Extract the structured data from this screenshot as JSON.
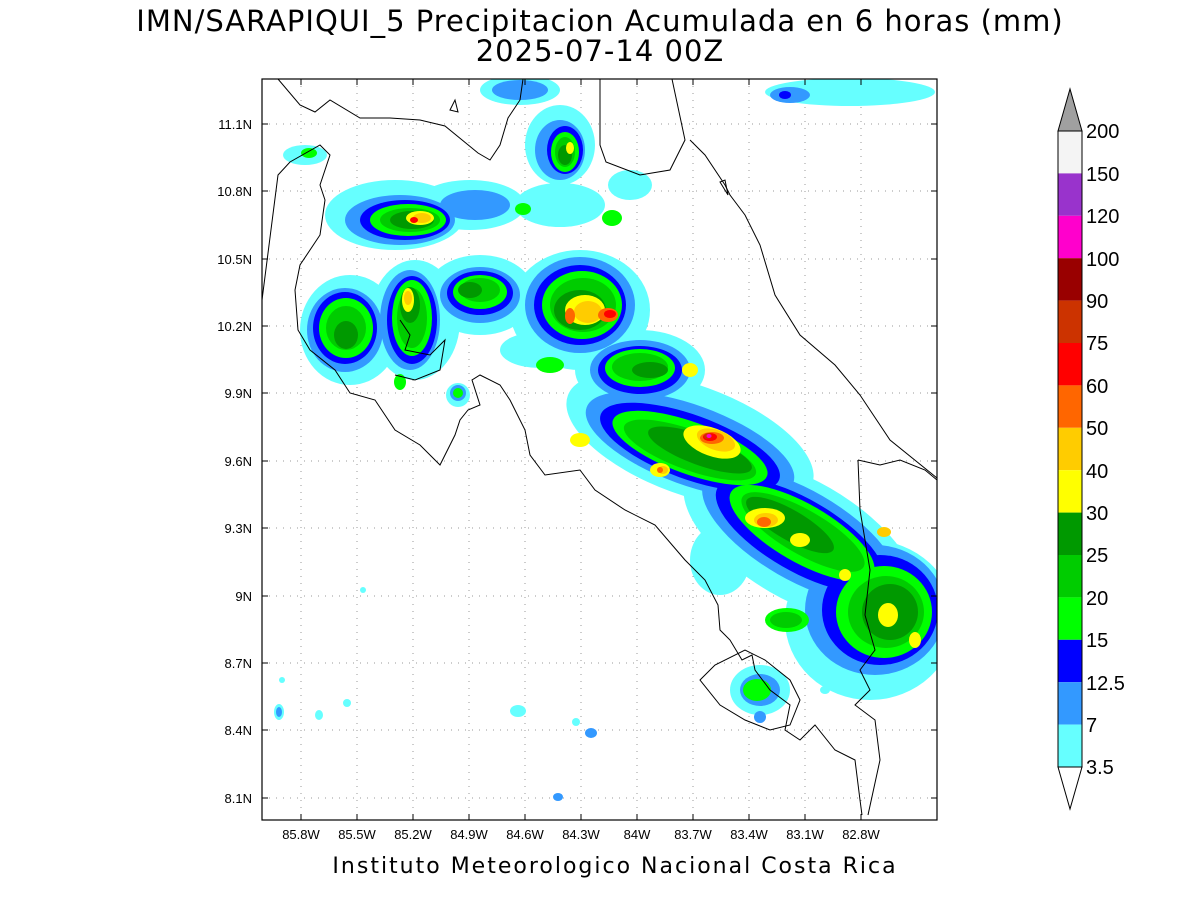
{
  "title_line1": "IMN/SARAPIQUI_5 Precipitacion Acumulada en 6 horas (mm)",
  "title_line2": "2025-07-14 00Z",
  "footer": "Instituto Meteorologico Nacional Costa Rica",
  "lat_labels": [
    "11.1N",
    "10.8N",
    "10.5N",
    "10.2N",
    "9.9N",
    "9.6N",
    "9.3N",
    "9N",
    "8.7N",
    "8.4N",
    "8.1N"
  ],
  "lon_labels": [
    "85.8W",
    "85.5W",
    "85.2W",
    "84.9W",
    "84.6W",
    "84.3W",
    "84W",
    "83.7W",
    "83.4W",
    "83.1W",
    "82.8W"
  ],
  "colorbar": {
    "labels": [
      "200",
      "150",
      "120",
      "100",
      "90",
      "75",
      "60",
      "50",
      "40",
      "30",
      "25",
      "20",
      "15",
      "12.5",
      "7",
      "3.5"
    ],
    "colors": {
      "c3_5": "#66ffff",
      "c7": "#3399ff",
      "c12_5": "#0000ff",
      "c15": "#00ff00",
      "c20": "#00cc00",
      "c25": "#009900",
      "c30": "#ffff00",
      "c40": "#ffcc00",
      "c50": "#ff6600",
      "c60": "#ff0000",
      "c75": "#cc3300",
      "c90": "#990000",
      "c100": "#ff00cc",
      "c120": "#9933cc",
      "c150": "#f4f4f4",
      "c200": "#a0a0a0"
    }
  }
}
